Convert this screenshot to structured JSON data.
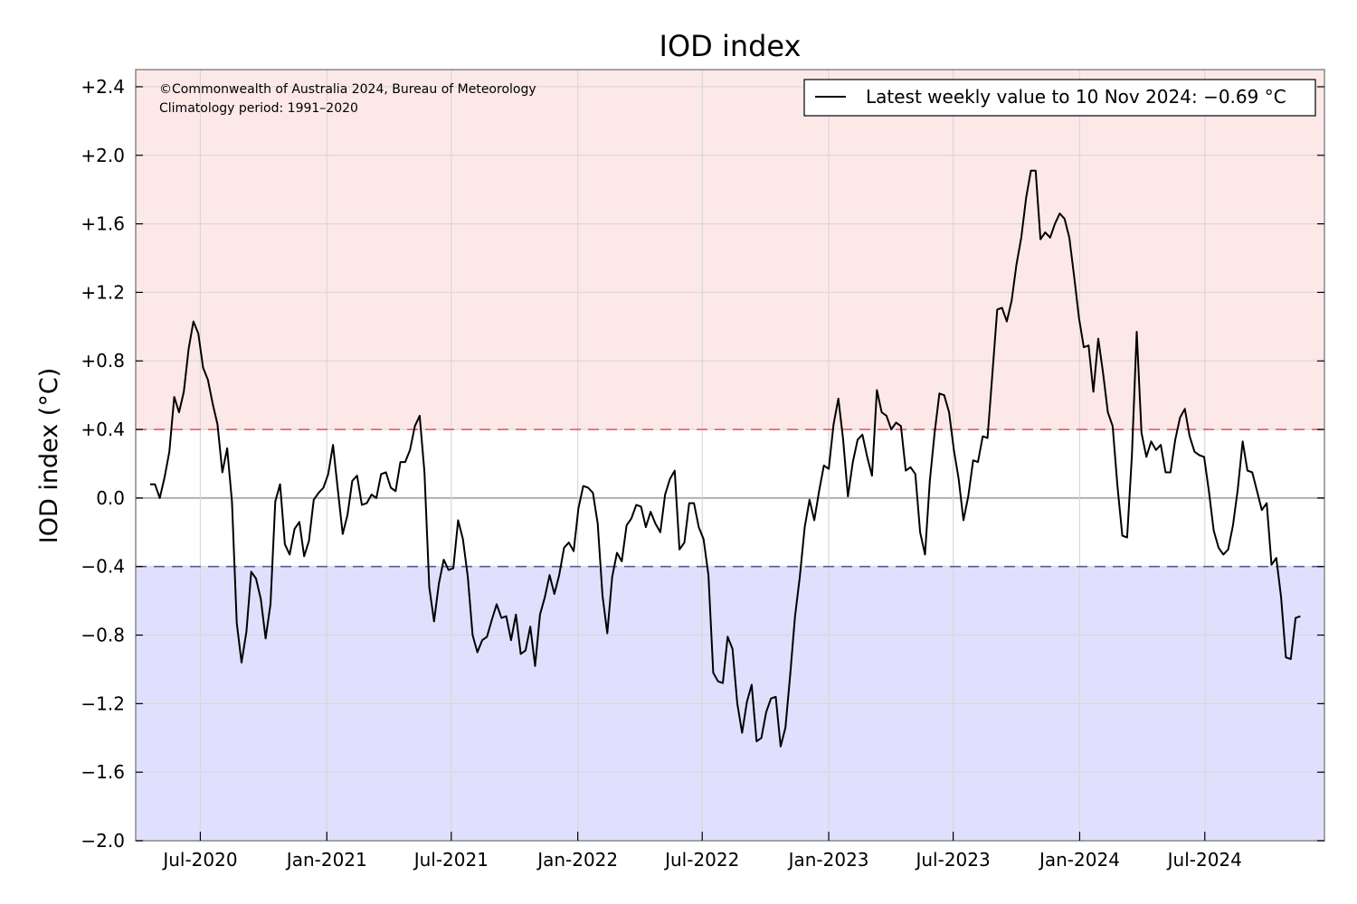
{
  "chart_data": {
    "type": "line",
    "title": "IOD index",
    "ylabel": "IOD index (°C)",
    "xlabel": "",
    "ylim": [
      -2.0,
      2.5
    ],
    "xlim": [
      "2020-03-29",
      "2024-12-22"
    ],
    "grid": true,
    "legend_position": "top-right",
    "annotations": [
      "©Commonwealth of Australia 2024, Bureau of Meteorology",
      "Climatology period: 1991–2020"
    ],
    "legend": [
      {
        "label": "Latest weekly value to 10 Nov 2024: −0.69 °C"
      }
    ],
    "y_ticks": [
      {
        "value": 2.4,
        "label": "+2.4"
      },
      {
        "value": 2.0,
        "label": "+2.0"
      },
      {
        "value": 1.6,
        "label": "+1.6"
      },
      {
        "value": 1.2,
        "label": "+1.2"
      },
      {
        "value": 0.8,
        "label": "+0.8"
      },
      {
        "value": 0.4,
        "label": "+0.4"
      },
      {
        "value": 0.0,
        "label": "0.0"
      },
      {
        "value": -0.4,
        "label": "−0.4"
      },
      {
        "value": -0.8,
        "label": "−0.8"
      },
      {
        "value": -1.2,
        "label": "−1.2"
      },
      {
        "value": -1.6,
        "label": "−1.6"
      },
      {
        "value": -2.0,
        "label": "−2.0"
      }
    ],
    "x_ticks": [
      {
        "value": "2020-07-01",
        "label": "Jul-2020"
      },
      {
        "value": "2021-01-01",
        "label": "Jan-2021"
      },
      {
        "value": "2021-07-01",
        "label": "Jul-2021"
      },
      {
        "value": "2022-01-01",
        "label": "Jan-2022"
      },
      {
        "value": "2022-07-01",
        "label": "Jul-2022"
      },
      {
        "value": "2023-01-01",
        "label": "Jan-2023"
      },
      {
        "value": "2023-07-01",
        "label": "Jul-2023"
      },
      {
        "value": "2024-01-01",
        "label": "Jan-2024"
      },
      {
        "value": "2024-07-01",
        "label": "Jul-2024"
      }
    ],
    "thresholds": [
      {
        "value": 0.4,
        "color": "#e06060"
      },
      {
        "value": -0.4,
        "color": "#5a5a9a"
      }
    ],
    "colors": {
      "positive_band": "#fde8e8",
      "negative_band": "#e0e0fe",
      "line": "#000000",
      "grid": "#d8d8d8",
      "zero_line": "#b0b0b0"
    },
    "series": [
      {
        "start_date": "2020-04-19",
        "step_days": 7,
        "values": [
          0.08,
          0.08,
          0.0,
          0.12,
          0.27,
          0.59,
          0.5,
          0.62,
          0.87,
          1.03,
          0.96,
          0.76,
          0.69,
          0.55,
          0.43,
          0.15,
          0.29,
          -0.02,
          -0.73,
          -0.96,
          -0.78,
          -0.43,
          -0.47,
          -0.59,
          -0.82,
          -0.62,
          -0.02,
          0.08,
          -0.27,
          -0.33,
          -0.18,
          -0.14,
          -0.34,
          -0.25,
          -0.01,
          0.03,
          0.06,
          0.14,
          0.31,
          0.05,
          -0.21,
          -0.1,
          0.1,
          0.13,
          -0.04,
          -0.03,
          0.02,
          0.0,
          0.14,
          0.15,
          0.06,
          0.04,
          0.21,
          0.21,
          0.28,
          0.42,
          0.48,
          0.15,
          -0.52,
          -0.72,
          -0.5,
          -0.36,
          -0.42,
          -0.41,
          -0.13,
          -0.24,
          -0.46,
          -0.8,
          -0.9,
          -0.83,
          -0.81,
          -0.71,
          -0.62,
          -0.7,
          -0.69,
          -0.83,
          -0.68,
          -0.91,
          -0.89,
          -0.75,
          -0.98,
          -0.68,
          -0.58,
          -0.45,
          -0.56,
          -0.45,
          -0.29,
          -0.26,
          -0.31,
          -0.06,
          0.07,
          0.06,
          0.03,
          -0.15,
          -0.57,
          -0.79,
          -0.46,
          -0.32,
          -0.37,
          -0.16,
          -0.12,
          -0.04,
          -0.05,
          -0.17,
          -0.08,
          -0.15,
          -0.2,
          0.02,
          0.11,
          0.16,
          -0.3,
          -0.26,
          -0.03,
          -0.03,
          -0.17,
          -0.24,
          -0.45,
          -1.02,
          -1.07,
          -1.08,
          -0.81,
          -0.88,
          -1.2,
          -1.37,
          -1.19,
          -1.09,
          -1.42,
          -1.4,
          -1.25,
          -1.17,
          -1.16,
          -1.45,
          -1.34,
          -1.03,
          -0.69,
          -0.46,
          -0.17,
          -0.01,
          -0.13,
          0.04,
          0.19,
          0.17,
          0.43,
          0.58,
          0.34,
          0.01,
          0.21,
          0.34,
          0.37,
          0.24,
          0.13,
          0.63,
          0.5,
          0.48,
          0.4,
          0.44,
          0.42,
          0.16,
          0.18,
          0.14,
          -0.2,
          -0.33,
          0.1,
          0.38,
          0.61,
          0.6,
          0.5,
          0.28,
          0.11,
          -0.13,
          0.01,
          0.22,
          0.21,
          0.36,
          0.35,
          0.72,
          1.1,
          1.11,
          1.03,
          1.15,
          1.36,
          1.52,
          1.75,
          1.91,
          1.91,
          1.51,
          1.55,
          1.52,
          1.6,
          1.66,
          1.63,
          1.52,
          1.29,
          1.05,
          0.88,
          0.89,
          0.62,
          0.93,
          0.73,
          0.5,
          0.42,
          0.07,
          -0.22,
          -0.23,
          0.25,
          0.97,
          0.38,
          0.24,
          0.33,
          0.28,
          0.31,
          0.15,
          0.15,
          0.34,
          0.47,
          0.52,
          0.36,
          0.27,
          0.25,
          0.24,
          0.04,
          -0.19,
          -0.29,
          -0.33,
          -0.3,
          -0.16,
          0.05,
          0.33,
          0.16,
          0.15,
          0.04,
          -0.07,
          -0.03,
          -0.39,
          -0.35,
          -0.58,
          -0.93,
          -0.94,
          -0.7,
          -0.69
        ]
      }
    ]
  }
}
